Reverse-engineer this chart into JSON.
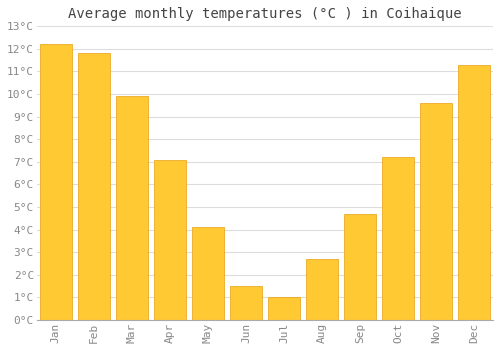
{
  "title": "Average monthly temperatures (°C ) in Coihaique",
  "months": [
    "Jan",
    "Feb",
    "Mar",
    "Apr",
    "May",
    "Jun",
    "Jul",
    "Aug",
    "Sep",
    "Oct",
    "Nov",
    "Dec"
  ],
  "values": [
    12.2,
    11.8,
    9.9,
    7.1,
    4.1,
    1.5,
    1.0,
    2.7,
    4.7,
    7.2,
    9.6,
    11.3
  ],
  "bar_color_top": "#FFC933",
  "bar_color_bottom": "#FFB020",
  "bar_edge_color": "#E8A010",
  "ylim": [
    0,
    13
  ],
  "yticks": [
    0,
    1,
    2,
    3,
    4,
    5,
    6,
    7,
    8,
    9,
    10,
    11,
    12,
    13
  ],
  "background_color": "#FFFFFF",
  "plot_bg_color": "#FFFFFF",
  "grid_color": "#DDDDDD",
  "title_fontsize": 10,
  "tick_fontsize": 8,
  "title_color": "#444444",
  "tick_color": "#888888",
  "bar_width": 0.85
}
